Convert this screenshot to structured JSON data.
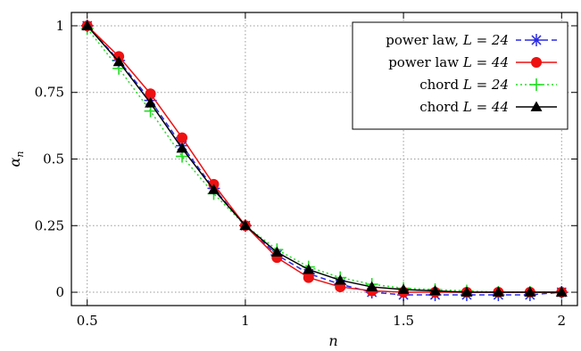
{
  "chart_data": {
    "type": "line",
    "title": "",
    "xlabel": "n",
    "ylabel": "α_n",
    "xlim": [
      0.45,
      2.05
    ],
    "ylim": [
      -0.05,
      1.05
    ],
    "x_ticks": [
      0.5,
      1,
      1.5,
      2
    ],
    "x_tick_labels": [
      "0.5",
      "1",
      "1.5",
      "2"
    ],
    "y_ticks": [
      0,
      0.25,
      0.5,
      0.75,
      1
    ],
    "y_tick_labels": [
      "0",
      "0.25",
      "0.5",
      "0.75",
      "1"
    ],
    "grid": true,
    "legend_position": "top-right",
    "x": [
      0.5,
      0.6,
      0.7,
      0.8,
      0.9,
      1.0,
      1.1,
      1.2,
      1.3,
      1.4,
      1.5,
      1.6,
      1.7,
      1.8,
      1.9,
      2.0
    ],
    "series": [
      {
        "name": "power law, L = 24",
        "label_text": "power law, ",
        "label_math": "L = 24",
        "color": "#2a2ae6",
        "line_style": "dashed",
        "marker": "asterisk",
        "values": [
          1.0,
          0.87,
          0.72,
          0.55,
          0.39,
          0.25,
          0.14,
          0.07,
          0.03,
          0.0,
          -0.01,
          -0.01,
          -0.01,
          -0.01,
          -0.01,
          0.0
        ]
      },
      {
        "name": "power law L = 44",
        "label_text": "power law ",
        "label_math": "L = 44",
        "color": "#ee1111",
        "line_style": "solid",
        "marker": "circle",
        "values": [
          1.0,
          0.885,
          0.745,
          0.58,
          0.405,
          0.25,
          0.13,
          0.055,
          0.02,
          0.005,
          0.0,
          0.0,
          0.0,
          0.0,
          0.0,
          0.0
        ]
      },
      {
        "name": "chord L = 24",
        "label_text": "chord ",
        "label_math": "L = 24",
        "color": "#22dd22",
        "line_style": "dotted",
        "marker": "plus",
        "values": [
          0.99,
          0.84,
          0.68,
          0.51,
          0.37,
          0.25,
          0.16,
          0.095,
          0.055,
          0.03,
          0.015,
          0.01,
          0.005,
          0.0,
          0.0,
          0.0
        ]
      },
      {
        "name": "chord L = 44",
        "label_text": "chord ",
        "label_math": "L = 44",
        "color": "#000000",
        "line_style": "solid",
        "marker": "triangle",
        "values": [
          1.0,
          0.865,
          0.71,
          0.54,
          0.385,
          0.25,
          0.15,
          0.085,
          0.045,
          0.02,
          0.01,
          0.005,
          0.0,
          0.0,
          0.0,
          0.0
        ]
      }
    ]
  }
}
